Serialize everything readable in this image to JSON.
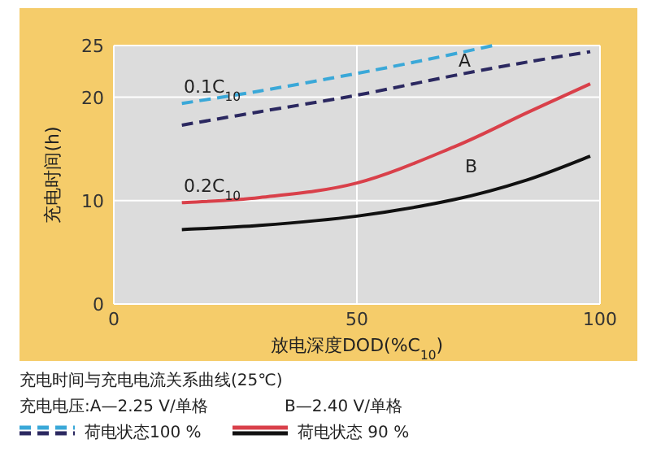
{
  "chart_data": {
    "type": "line",
    "xlabel": "放电深度DOD(%C$_{10}$)",
    "ylabel": "充电时间(h)",
    "xlim": [
      0,
      100
    ],
    "ylim": [
      0,
      25
    ],
    "xticks": [
      0,
      50,
      100
    ],
    "yticks": [
      0,
      10,
      20,
      25
    ],
    "grid": true,
    "legend": "bottom",
    "marker": "none",
    "series": [
      {
        "name": "荷电状态100 %",
        "color": "#3aa8d8",
        "line_style": "dashed",
        "x": [
          14,
          30,
          50,
          65,
          78
        ],
        "values": [
          19.4,
          20.6,
          22.3,
          23.7,
          25
        ]
      },
      {
        "color": "#2b2860",
        "line_style": "dashed",
        "x": [
          14,
          30,
          50,
          70,
          85,
          98
        ],
        "values": [
          17.3,
          18.6,
          20.2,
          22.1,
          23.4,
          24.4
        ]
      },
      {
        "name": "荷电状态 90 %",
        "color": "#d9404a",
        "line_style": "solid",
        "x": [
          14,
          30,
          50,
          70,
          85,
          98
        ],
        "values": [
          9.8,
          10.3,
          11.7,
          15.2,
          18.5,
          21.3
        ]
      },
      {
        "color": "#111111",
        "line_style": "solid",
        "x": [
          14,
          30,
          50,
          70,
          85,
          98
        ],
        "values": [
          7.2,
          7.6,
          8.5,
          10.1,
          12,
          14.3
        ]
      }
    ],
    "annotations": [
      "0.1C$_{10}$",
      "0.2C$_{10}$",
      "A",
      "B",
      "充电时间与充电电流关系曲线(25℃)",
      "充电电压:A—2.25 V/单格",
      "B—2.40 V/单格"
    ]
  }
}
